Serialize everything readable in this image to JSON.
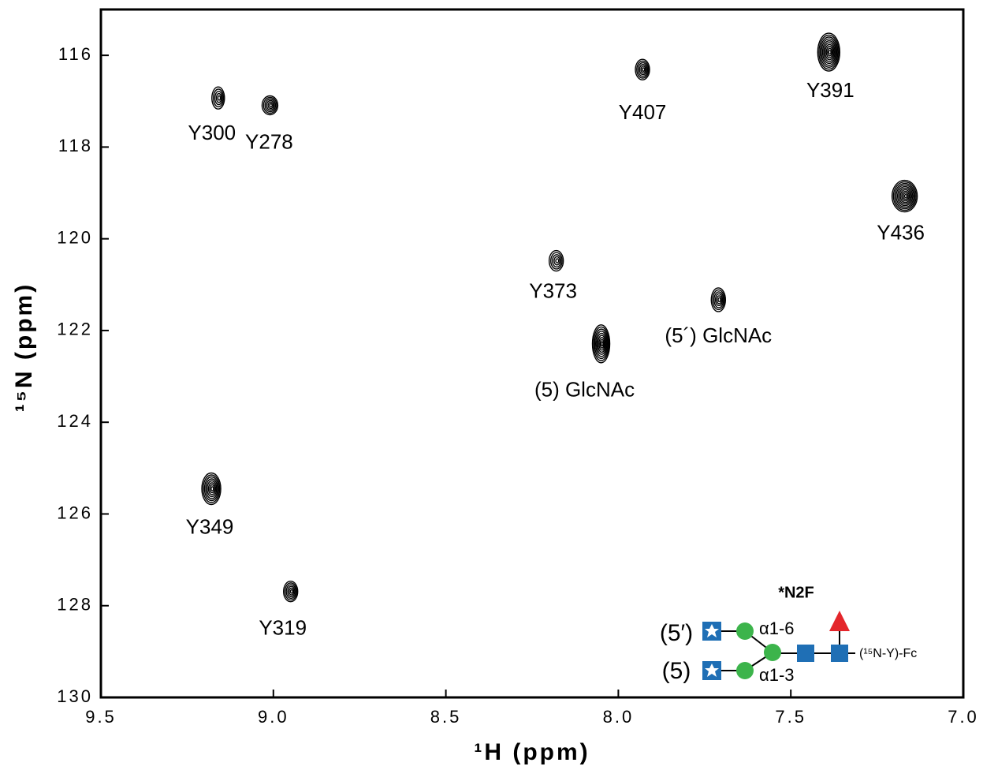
{
  "chart_data": {
    "type": "contour",
    "xlabel": "¹H (ppm)",
    "ylabel": "¹⁵N (ppm)",
    "xlim": [
      9.5,
      7.0
    ],
    "ylim": [
      130,
      115
    ],
    "xticks": [
      9.5,
      {
        "value": 9,
        "label": "9.0"
      },
      8.5,
      {
        "value": 8,
        "label": "8.0"
      },
      7.5,
      {
        "value": 7,
        "label": "7.0"
      }
    ],
    "yticks": [
      116,
      118,
      120,
      122,
      124,
      126,
      128,
      130
    ],
    "x": [
      9.16,
      9.01,
      7.93,
      7.39,
      7.17,
      8.18,
      7.71,
      8.05,
      9.18,
      8.95
    ],
    "series": [
      {
        "color": "#000000",
        "values": [
          116.93,
          117.09,
          116.31,
          115.93,
          119.07,
          120.48,
          121.33,
          122.29,
          125.45,
          127.69
        ],
        "labels": [
          "Y300",
          "Y278",
          "Y407",
          "Y391",
          "Y436",
          "Y373",
          "(5´) GlcNAc",
          "(5) GlcNAc",
          "Y349",
          "Y319"
        ]
      }
    ],
    "annotations": [
      "*N2F",
      "(5′)",
      "(5)",
      "α1-6",
      "α1-3",
      "(¹⁵N-Y)-Fc"
    ]
  }
}
